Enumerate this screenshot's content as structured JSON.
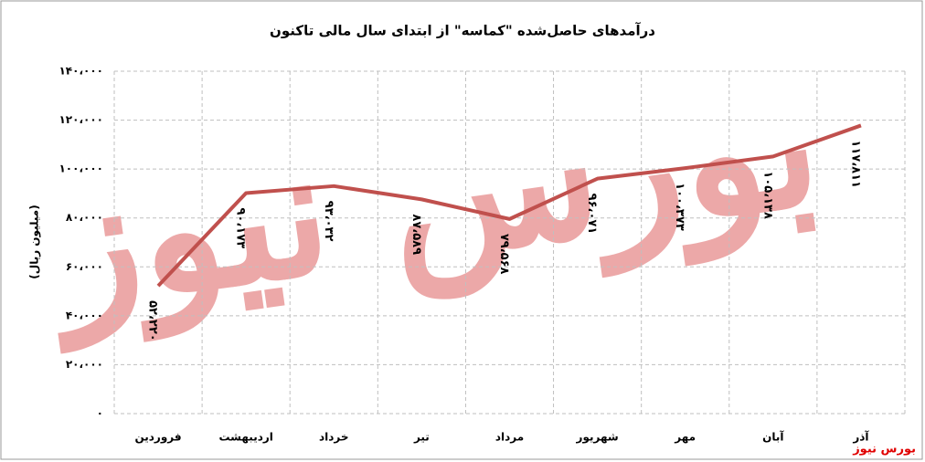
{
  "chart_data": {
    "type": "line",
    "title": "درآمدهای حاصل‌شده \"کماسه\" از ابتدای سال مالی تاکنون",
    "y_label": "(میلیون ریال)",
    "watermark": "بورس نیوز",
    "source": "بورس نیوز",
    "categories": [
      "فروردین",
      "اردیبهشت",
      "خرداد",
      "تیر",
      "مرداد",
      "شهریور",
      "مهر",
      "آبان",
      "آذر"
    ],
    "values": [
      52220,
      90173,
      93032,
      87589,
      79568,
      96071,
      100373,
      105138,
      117811
    ],
    "value_labels": [
      "۵۲،۲۲۰",
      "۹۰،۱۷۳",
      "۹۳،۰۳۲",
      "۸۷،۵۸۹",
      "۷۹،۵۶۸",
      "۹۶،۰۷۱",
      "۱۰۰،۳۷۳",
      "۱۰۵،۱۳۸",
      "۱۱۷،۸۱۱"
    ],
    "color": "#c0504d",
    "ylim": [
      0,
      140000
    ],
    "yticks": [
      {
        "value": 0,
        "label": "۰"
      },
      {
        "value": 20000,
        "label": "۲۰،۰۰۰"
      },
      {
        "value": 40000,
        "label": "۴۰،۰۰۰"
      },
      {
        "value": 60000,
        "label": "۶۰،۰۰۰"
      },
      {
        "value": 80000,
        "label": "۸۰،۰۰۰"
      },
      {
        "value": 100000,
        "label": "۱۰۰،۰۰۰"
      },
      {
        "value": 120000,
        "label": "۱۲۰،۰۰۰"
      },
      {
        "value": 140000,
        "label": "۱۴۰،۰۰۰"
      }
    ],
    "grid": true
  }
}
